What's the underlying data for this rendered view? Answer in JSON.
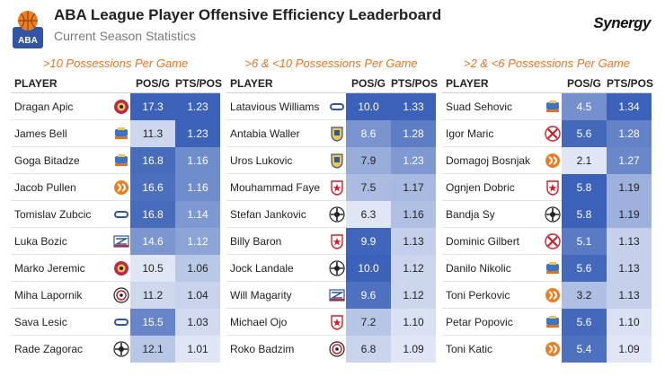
{
  "header": {
    "title": "ABA League Player Offensive Efficiency Leaderboard",
    "subtitle": "Current Season Statistics",
    "logo_text": "ABA",
    "brand": "Synergy"
  },
  "columns": {
    "player": "PLAYER",
    "pos_g": "POS/G",
    "pts_pos": "PTS/POS"
  },
  "colors": {
    "accent": "#e8731f",
    "heat_max": "#3b62b8",
    "heat_min": "#eef2fa"
  },
  "panels": [
    {
      "title": ">10 Possessions Per Game",
      "rows": [
        {
          "player": "Dragan Apic",
          "team": "cedevita",
          "pos_g": "17.3",
          "pts_pos": "1.23",
          "pos_v": 17.3,
          "pts_v": 1.23
        },
        {
          "player": "James Bell",
          "team": "buducnost",
          "pos_g": "11.3",
          "pts_pos": "1.23",
          "pos_v": 11.3,
          "pts_v": 1.23
        },
        {
          "player": "Goga Bitadze",
          "team": "buducnost",
          "pos_g": "16.8",
          "pts_pos": "1.16",
          "pos_v": 16.8,
          "pts_v": 1.16
        },
        {
          "player": "Jacob Pullen",
          "team": "cedevita-olimpija",
          "pos_g": "16.6",
          "pts_pos": "1.16",
          "pos_v": 16.6,
          "pts_v": 1.16
        },
        {
          "player": "Tomislav Zubcic",
          "team": "igokea",
          "pos_g": "16.8",
          "pts_pos": "1.14",
          "pos_v": 16.8,
          "pts_v": 1.14
        },
        {
          "player": "Luka Bozic",
          "team": "zadar",
          "pos_g": "14.6",
          "pts_pos": "1.12",
          "pos_v": 14.6,
          "pts_v": 1.12
        },
        {
          "player": "Marko Jeremic",
          "team": "cedevita",
          "pos_g": "10.5",
          "pts_pos": "1.06",
          "pos_v": 10.5,
          "pts_v": 1.06
        },
        {
          "player": "Miha Lapornik",
          "team": "krka",
          "pos_g": "11.2",
          "pts_pos": "1.04",
          "pos_v": 11.2,
          "pts_v": 1.04
        },
        {
          "player": "Sava Lesic",
          "team": "igokea",
          "pos_g": "15.5",
          "pts_pos": "1.03",
          "pos_v": 15.5,
          "pts_v": 1.03
        },
        {
          "player": "Rade Zagorac",
          "team": "partizan",
          "pos_g": "12.1",
          "pts_pos": "1.01",
          "pos_v": 12.1,
          "pts_v": 1.01
        }
      ]
    },
    {
      "title": ">6 & <10 Possessions Per Game",
      "rows": [
        {
          "player": "Latavious Williams",
          "team": "igokea",
          "pos_g": "10.0",
          "pts_pos": "1.33",
          "pos_v": 10.0,
          "pts_v": 1.33
        },
        {
          "player": "Antabia Waller",
          "team": "mornar",
          "pos_g": "8.6",
          "pts_pos": "1.28",
          "pos_v": 8.6,
          "pts_v": 1.28
        },
        {
          "player": "Uros Lukovic",
          "team": "mornar",
          "pos_g": "7.9",
          "pts_pos": "1.23",
          "pos_v": 7.9,
          "pts_v": 1.23
        },
        {
          "player": "Mouhammad Faye",
          "team": "crvena-zvezda",
          "pos_g": "7.5",
          "pts_pos": "1.17",
          "pos_v": 7.5,
          "pts_v": 1.17
        },
        {
          "player": "Stefan Jankovic",
          "team": "partizan",
          "pos_g": "6.3",
          "pts_pos": "1.16",
          "pos_v": 6.3,
          "pts_v": 1.16
        },
        {
          "player": "Billy Baron",
          "team": "crvena-zvezda",
          "pos_g": "9.9",
          "pts_pos": "1.13",
          "pos_v": 9.9,
          "pts_v": 1.13
        },
        {
          "player": "Jock Landale",
          "team": "partizan",
          "pos_g": "10.0",
          "pts_pos": "1.12",
          "pos_v": 10.0,
          "pts_v": 1.12
        },
        {
          "player": "Will Magarity",
          "team": "zadar",
          "pos_g": "9.6",
          "pts_pos": "1.12",
          "pos_v": 9.6,
          "pts_v": 1.12
        },
        {
          "player": "Michael Ojo",
          "team": "crvena-zvezda",
          "pos_g": "7.2",
          "pts_pos": "1.10",
          "pos_v": 7.2,
          "pts_v": 1.1
        },
        {
          "player": "Roko Badzim",
          "team": "krka",
          "pos_g": "6.8",
          "pts_pos": "1.09",
          "pos_v": 6.8,
          "pts_v": 1.09
        }
      ]
    },
    {
      "title": ">2 & <6 Possessions Per Game",
      "rows": [
        {
          "player": "Suad Sehovic",
          "team": "buducnost",
          "pos_g": "4.5",
          "pts_pos": "1.34",
          "pos_v": 4.5,
          "pts_v": 1.34
        },
        {
          "player": "Igor Maric",
          "team": "cibona",
          "pos_g": "5.6",
          "pts_pos": "1.28",
          "pos_v": 5.6,
          "pts_v": 1.28
        },
        {
          "player": "Domagoj Bosnjak",
          "team": "cedevita-olimpija",
          "pos_g": "2.1",
          "pts_pos": "1.27",
          "pos_v": 2.1,
          "pts_v": 1.27
        },
        {
          "player": "Ognjen Dobric",
          "team": "crvena-zvezda",
          "pos_g": "5.8",
          "pts_pos": "1.19",
          "pos_v": 5.8,
          "pts_v": 1.19
        },
        {
          "player": "Bandja Sy",
          "team": "partizan",
          "pos_g": "5.8",
          "pts_pos": "1.19",
          "pos_v": 5.8,
          "pts_v": 1.19
        },
        {
          "player": "Dominic Gilbert",
          "team": "cibona",
          "pos_g": "5.1",
          "pts_pos": "1.13",
          "pos_v": 5.1,
          "pts_v": 1.13
        },
        {
          "player": "Danilo Nikolic",
          "team": "buducnost",
          "pos_g": "5.6",
          "pts_pos": "1.13",
          "pos_v": 5.6,
          "pts_v": 1.13
        },
        {
          "player": "Toni Perkovic",
          "team": "cedevita-olimpija",
          "pos_g": "3.2",
          "pts_pos": "1.13",
          "pos_v": 3.2,
          "pts_v": 1.13
        },
        {
          "player": "Petar Popovic",
          "team": "buducnost",
          "pos_g": "5.6",
          "pts_pos": "1.10",
          "pos_v": 5.6,
          "pts_v": 1.1
        },
        {
          "player": "Toni Katic",
          "team": "cedevita-olimpija",
          "pos_g": "5.4",
          "pts_pos": "1.09",
          "pos_v": 5.4,
          "pts_v": 1.09
        }
      ]
    }
  ]
}
